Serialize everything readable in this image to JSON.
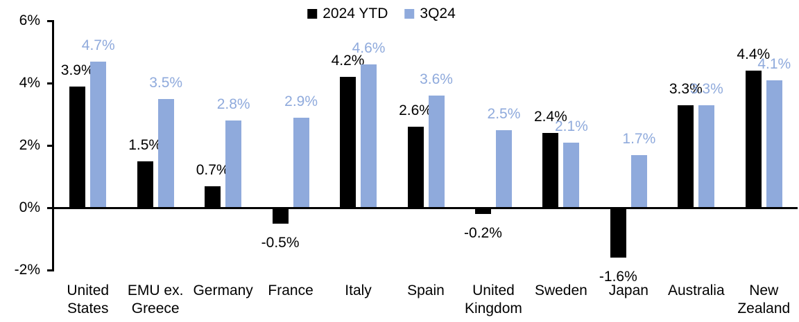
{
  "chart_data": {
    "type": "bar",
    "title": "",
    "categories": [
      "United States",
      "EMU ex. Greece",
      "Germany",
      "France",
      "Italy",
      "Spain",
      "United Kingdom",
      "Sweden",
      "Japan",
      "Australia",
      "New Zealand"
    ],
    "category_label_lines": [
      "United\nStates",
      "EMU ex.\nGreece",
      "Germany",
      "France",
      "Italy",
      "Spain",
      "United\nKingdom",
      "Sweden",
      "Japan",
      "Australia",
      "New\nZealand"
    ],
    "series": [
      {
        "name": "2024 YTD",
        "color": "#000000",
        "values": [
          3.9,
          1.5,
          0.7,
          -0.5,
          4.2,
          2.6,
          -0.2,
          2.4,
          -1.6,
          3.3,
          4.4
        ],
        "labels": [
          "3.9%",
          "1.5%",
          "0.7%",
          "-0.5%",
          "4.2%",
          "2.6%",
          "-0.2%",
          "2.4%",
          "-1.6%",
          "3.3%",
          "4.4%"
        ]
      },
      {
        "name": "3Q24",
        "color": "#8FAADC",
        "values": [
          4.7,
          3.5,
          2.8,
          2.9,
          4.6,
          3.6,
          2.5,
          2.1,
          1.7,
          3.3,
          4.1
        ],
        "labels": [
          "4.7%",
          "3.5%",
          "2.8%",
          "2.9%",
          "4.6%",
          "3.6%",
          "2.5%",
          "2.1%",
          "1.7%",
          "3.3%",
          "4.1%"
        ]
      }
    ],
    "y_axis": {
      "min": -2,
      "max": 6,
      "tick_interval": 2,
      "tick_values": [
        6,
        4,
        2,
        0,
        -2
      ],
      "tick_labels": [
        "6%",
        "4%",
        "2%",
        "0%",
        "-2%"
      ],
      "unit": "%"
    },
    "legend": {
      "position": "top-center",
      "entries": [
        "2024 YTD",
        "3Q24"
      ]
    },
    "grid": false,
    "axis_color": "#000000",
    "background": "#FFFFFF"
  }
}
